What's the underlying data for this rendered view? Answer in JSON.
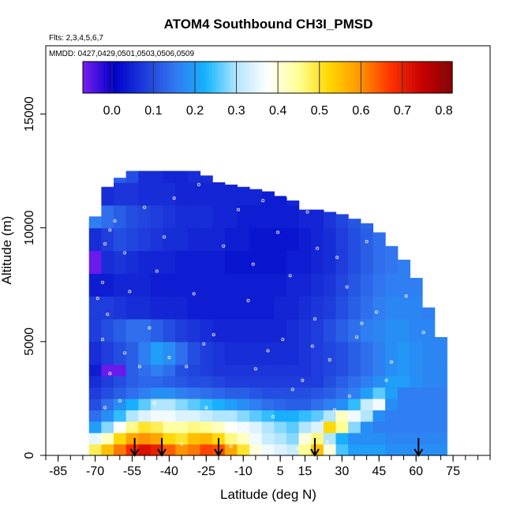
{
  "chart_data": {
    "type": "heatmap",
    "title": "ATOM4 Southbound CH3I_PMSD",
    "flights_note": "Flts: 2,3,4,5,6,7",
    "dates_note": "MMDD: 0427,0429,0501,0503,0506,0509",
    "xlabel": "Latitude (deg N)",
    "ylabel": "Altitude (m)",
    "xlim": [
      -90,
      90
    ],
    "ylim": [
      0,
      18000
    ],
    "x_ticks": [
      -85,
      -70,
      -55,
      -40,
      -25,
      -10,
      5,
      15,
      30,
      45,
      60,
      75
    ],
    "x_tick_labels": [
      "-85",
      "-70",
      "-55",
      "-40",
      "-25",
      "-10",
      "5",
      "15",
      "30",
      "45",
      "60",
      "75"
    ],
    "y_ticks": [
      0,
      5000,
      10000,
      15000
    ],
    "y_tick_labels": [
      "0",
      "5000",
      "10000",
      "15000"
    ],
    "colorbar": {
      "range": [
        -0.07,
        0.82
      ],
      "ticks": [
        0.0,
        0.1,
        0.2,
        0.3,
        0.4,
        0.5,
        0.6,
        0.7,
        0.8
      ],
      "tick_labels": [
        "0.0",
        "0.1",
        "0.2",
        "0.3",
        "0.4",
        "0.5",
        "0.6",
        "0.7",
        "0.8"
      ],
      "colors": [
        "#7a1ef0",
        "#0000c8",
        "#1e3cdc",
        "#3278f0",
        "#14b4ff",
        "#b4e6ff",
        "#ffffff",
        "#ffff96",
        "#ffd700",
        "#ff9600",
        "#ff3200",
        "#c80000",
        "#8c0000"
      ]
    },
    "profile_markers_lat": [
      -54,
      -43,
      -20,
      19,
      61
    ],
    "latitude_bins": [
      -70,
      -65,
      -60,
      -55,
      -50,
      -45,
      -40,
      -35,
      -30,
      -25,
      -20,
      -15,
      -10,
      -5,
      0,
      5,
      10,
      15,
      20,
      25,
      30,
      35,
      40,
      45,
      50,
      55,
      60,
      65,
      70
    ],
    "altitude_bins": [
      0,
      500,
      1000,
      1500,
      2000,
      2500,
      3000,
      3500,
      4000,
      5000,
      6000,
      7000,
      8000,
      9000,
      10000,
      11000,
      12000
    ],
    "max_altitude_by_lat": [
      10500,
      11800,
      12200,
      12500,
      12500,
      12500,
      12500,
      12500,
      12500,
      12300,
      12000,
      11900,
      11800,
      11700,
      11600,
      11400,
      11200,
      10800,
      10800,
      10700,
      10600,
      10400,
      10200,
      9800,
      9200,
      8600,
      7800,
      6500,
      5200
    ],
    "values": [
      [
        0.48,
        0.55,
        0.62,
        0.68,
        0.72,
        0.7,
        0.64,
        0.6,
        0.62,
        0.66,
        0.65,
        0.58,
        0.5,
        0.4,
        0.36,
        0.34,
        0.32,
        0.45,
        0.55,
        0.4,
        0.25,
        0.2,
        0.2,
        0.2,
        0.18,
        0.18,
        0.18,
        0.18,
        0.18
      ],
      [
        0.35,
        0.42,
        0.52,
        0.58,
        0.6,
        0.58,
        0.52,
        0.5,
        0.55,
        0.56,
        0.52,
        0.46,
        0.42,
        0.36,
        0.32,
        0.3,
        0.28,
        0.4,
        0.46,
        0.3,
        0.22,
        0.18,
        0.18,
        0.18,
        0.17,
        0.17,
        0.17,
        0.17,
        0.17
      ],
      [
        0.2,
        0.28,
        0.38,
        0.46,
        0.5,
        0.48,
        0.44,
        0.44,
        0.46,
        0.45,
        0.42,
        0.38,
        0.36,
        0.34,
        0.3,
        0.28,
        0.26,
        0.3,
        0.34,
        0.52,
        0.45,
        0.28,
        0.18,
        0.16,
        0.16,
        0.16,
        0.16,
        0.16,
        0.16
      ],
      [
        0.14,
        0.18,
        0.24,
        0.3,
        0.34,
        0.36,
        0.36,
        0.34,
        0.34,
        0.32,
        0.3,
        0.3,
        0.28,
        0.26,
        0.24,
        0.22,
        0.22,
        0.24,
        0.26,
        0.3,
        0.42,
        0.36,
        0.3,
        0.18,
        0.16,
        0.16,
        0.16,
        0.16,
        0.16
      ],
      [
        0.1,
        0.14,
        0.18,
        0.22,
        0.26,
        0.3,
        0.3,
        0.28,
        0.26,
        0.24,
        0.22,
        0.2,
        0.18,
        0.16,
        0.14,
        0.13,
        0.12,
        0.12,
        0.14,
        0.16,
        0.18,
        0.24,
        0.32,
        0.36,
        0.18,
        0.16,
        0.16,
        0.16,
        0.16
      ],
      [
        0.08,
        0.1,
        0.12,
        0.14,
        0.16,
        0.18,
        0.18,
        0.16,
        0.15,
        0.14,
        0.13,
        0.12,
        0.12,
        0.11,
        0.1,
        0.1,
        0.1,
        0.1,
        0.11,
        0.12,
        0.14,
        0.16,
        0.2,
        0.26,
        0.2,
        0.16,
        0.16,
        0.16,
        0.16
      ],
      [
        0.06,
        0.08,
        0.1,
        0.12,
        0.13,
        0.13,
        0.12,
        0.11,
        0.1,
        0.1,
        0.09,
        0.08,
        0.08,
        0.08,
        0.08,
        0.08,
        0.08,
        0.08,
        0.08,
        0.1,
        0.12,
        0.14,
        0.16,
        0.18,
        0.2,
        0.2,
        0.18,
        0.17,
        0.17
      ],
      [
        0.04,
        -0.06,
        -0.06,
        0.12,
        0.14,
        0.16,
        0.14,
        0.1,
        0.09,
        0.08,
        0.07,
        0.07,
        0.07,
        0.07,
        0.07,
        0.07,
        0.07,
        0.07,
        0.08,
        0.09,
        0.1,
        0.12,
        0.14,
        0.16,
        0.18,
        0.19,
        0.18,
        0.17,
        0.17
      ],
      [
        0.06,
        0.08,
        0.1,
        0.12,
        0.16,
        0.2,
        0.18,
        0.14,
        0.1,
        0.08,
        0.07,
        0.06,
        0.06,
        0.06,
        0.06,
        0.06,
        0.06,
        0.07,
        0.08,
        0.09,
        0.1,
        0.12,
        0.14,
        0.16,
        0.18,
        0.19,
        0.18,
        0.17,
        0.17
      ],
      [
        0.08,
        0.1,
        0.12,
        0.14,
        0.14,
        0.12,
        0.1,
        0.08,
        0.07,
        0.06,
        0.05,
        0.05,
        0.05,
        0.05,
        0.05,
        0.05,
        0.06,
        0.07,
        0.08,
        0.1,
        0.12,
        0.14,
        0.16,
        0.17,
        0.18,
        0.18,
        0.17,
        0.17,
        0.17
      ],
      [
        0.08,
        0.08,
        0.07,
        0.06,
        0.06,
        0.05,
        0.05,
        0.05,
        0.04,
        0.04,
        0.04,
        0.04,
        0.04,
        0.04,
        0.04,
        0.05,
        0.05,
        0.06,
        0.07,
        0.08,
        0.1,
        0.12,
        0.14,
        0.16,
        0.17,
        0.17,
        0.17,
        0.16,
        0.16
      ],
      [
        0.04,
        0.04,
        0.05,
        0.05,
        0.05,
        0.04,
        0.04,
        0.04,
        0.04,
        0.04,
        0.04,
        0.04,
        0.04,
        0.04,
        0.04,
        0.04,
        0.05,
        0.05,
        0.06,
        0.07,
        0.09,
        0.11,
        0.13,
        0.15,
        0.16,
        0.16,
        0.16,
        0.16,
        0.16
      ],
      [
        -0.06,
        0.06,
        0.07,
        0.06,
        0.05,
        0.05,
        0.05,
        0.04,
        0.04,
        0.04,
        0.04,
        0.03,
        0.03,
        0.03,
        0.03,
        0.03,
        0.04,
        0.04,
        0.05,
        0.06,
        0.08,
        0.1,
        0.12,
        0.14,
        0.15,
        0.16,
        0.16,
        0.16,
        0.16
      ],
      [
        0.06,
        0.08,
        0.1,
        0.09,
        0.08,
        0.07,
        0.06,
        0.06,
        0.05,
        0.05,
        0.05,
        0.04,
        0.04,
        0.03,
        0.03,
        0.03,
        0.03,
        0.04,
        0.05,
        0.06,
        0.08,
        0.1,
        0.12,
        0.14,
        0.15,
        0.16,
        0.16,
        0.16,
        0.16
      ],
      [
        0.16,
        0.14,
        0.12,
        0.1,
        0.09,
        0.08,
        0.07,
        0.06,
        0.06,
        0.06,
        0.05,
        0.05,
        0.04,
        0.04,
        0.04,
        0.04,
        0.04,
        0.05,
        0.05,
        0.07,
        0.09,
        0.11,
        0.13,
        0.15,
        0.16,
        0.16,
        0.16,
        0.16,
        0.16
      ],
      [
        0.04,
        0.06,
        0.07,
        0.07,
        0.06,
        0.06,
        0.06,
        0.05,
        0.05,
        0.05,
        0.05,
        0.05,
        0.05,
        0.05,
        0.04,
        0.04,
        0.05,
        0.05,
        0.06,
        0.07,
        0.09,
        0.1,
        0.12,
        0.14,
        0.15,
        0.15,
        0.15,
        0.15,
        0.15
      ],
      [
        0.02,
        0.02,
        0.12,
        0.1,
        0.06,
        0.06,
        0.05,
        0.05,
        0.06,
        0.06,
        0.06,
        0.05,
        0.05,
        0.05,
        0.05,
        0.05,
        0.05,
        0.06,
        0.06,
        0.07,
        0.08,
        0.09,
        0.1,
        0.12,
        0.13,
        0.14,
        0.14,
        0.14,
        0.14
      ]
    ],
    "sample_points": [
      [
        -68,
        800
      ],
      [
        -66,
        2100
      ],
      [
        -64,
        3600
      ],
      [
        -67,
        5100
      ],
      [
        -65,
        6200
      ],
      [
        -67,
        7600
      ],
      [
        -66,
        9300
      ],
      [
        -64,
        9900
      ],
      [
        -60,
        2400
      ],
      [
        -58,
        4500
      ],
      [
        -55,
        1300
      ],
      [
        -52,
        3900
      ],
      [
        -48,
        5600
      ],
      [
        -45,
        8100
      ],
      [
        -42,
        9600
      ],
      [
        -38,
        11300
      ],
      [
        -33,
        3900
      ],
      [
        -30,
        7100
      ],
      [
        -25,
        2100
      ],
      [
        -22,
        5300
      ],
      [
        -18,
        9200
      ],
      [
        -15,
        400
      ],
      [
        -12,
        10800
      ],
      [
        -8,
        6800
      ],
      [
        -5,
        3800
      ],
      [
        -2,
        11200
      ],
      [
        2,
        1700
      ],
      [
        4,
        9800
      ],
      [
        6,
        5100
      ],
      [
        9,
        7900
      ],
      [
        12,
        300
      ],
      [
        14,
        3300
      ],
      [
        16,
        10700
      ],
      [
        19,
        6000
      ],
      [
        22,
        1500
      ],
      [
        25,
        4200
      ],
      [
        28,
        8700
      ],
      [
        30,
        11000
      ],
      [
        33,
        2600
      ],
      [
        36,
        5200
      ],
      [
        40,
        9400
      ],
      [
        44,
        6300
      ],
      [
        48,
        3300
      ],
      [
        52,
        9900
      ],
      [
        56,
        7000
      ],
      [
        60,
        8400
      ],
      [
        63,
        5400
      ],
      [
        -56,
        7200
      ],
      [
        -50,
        10900
      ],
      [
        -40,
        4300
      ],
      [
        -35,
        500
      ],
      [
        -28,
        11900
      ],
      [
        -10,
        1200
      ],
      [
        0,
        4600
      ],
      [
        10,
        2900
      ],
      [
        20,
        9100
      ],
      [
        24,
        600
      ],
      [
        32,
        7400
      ],
      [
        46,
        10400
      ],
      [
        -62,
        10300
      ],
      [
        -69,
        6900
      ],
      [
        -58,
        8900
      ],
      [
        -46,
        2300
      ],
      [
        -26,
        4900
      ],
      [
        -6,
        8400
      ],
      [
        8,
        11400
      ],
      [
        18,
        4800
      ],
      [
        27,
        2000
      ],
      [
        38,
        5800
      ],
      [
        50,
        4100
      ]
    ]
  }
}
